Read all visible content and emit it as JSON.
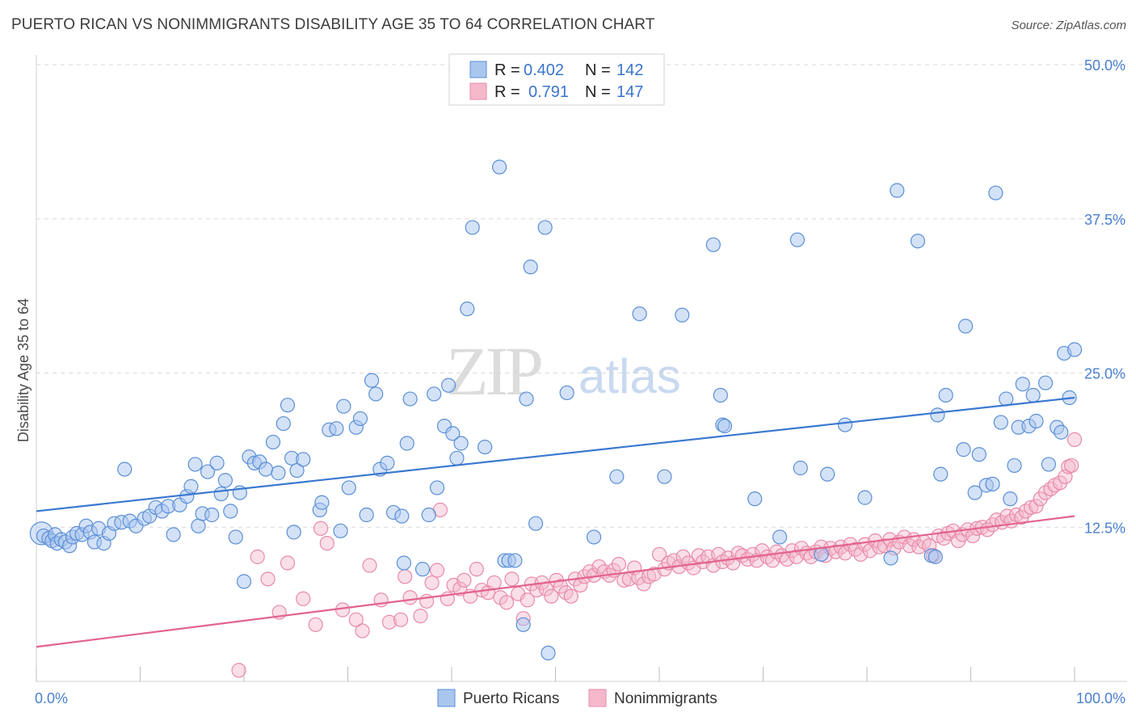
{
  "title": "PUERTO RICAN VS NONIMMIGRANTS DISABILITY AGE 35 TO 64 CORRELATION CHART",
  "source": "Source: ZipAtlas.com",
  "watermark": {
    "zip": "ZIP",
    "atlas": "atlas"
  },
  "legend": {
    "rows": [
      {
        "r_label": "R =",
        "r_value": "0.402",
        "n_label": "N =",
        "n_value": "142"
      },
      {
        "r_label": "R =",
        "r_value": "0.791",
        "n_label": "N =",
        "n_value": "147"
      }
    ]
  },
  "bottom_legend": [
    "Puerto Ricans",
    "Nonimmigrants"
  ],
  "colors": {
    "blue_fill": "#a9c6ef",
    "blue_stroke": "#5b8fd6",
    "blue_line": "#3a78d0",
    "pink_fill": "#f5b8cb",
    "pink_stroke": "#e88aa8",
    "pink_line": "#e2638e",
    "grid": "#d8d8d8",
    "tick_text": "#4a7fd0"
  },
  "chart_data": {
    "type": "scatter",
    "title": "PUERTO RICAN VS NONIMMIGRANTS DISABILITY AGE 35 TO 64 CORRELATION CHART",
    "ylabel": "Disability Age 35 to 64",
    "xlabel": "",
    "xlim": [
      0,
      100
    ],
    "ylim": [
      0,
      50
    ],
    "x_tick_labels": [
      "0.0%",
      "100.0%"
    ],
    "y_ticks": [
      12.5,
      25.0,
      37.5,
      50.0
    ],
    "y_tick_labels": [
      "12.5%",
      "25.0%",
      "37.5%",
      "50.0%"
    ],
    "grid": "horizontal dashed",
    "series": [
      {
        "name": "Puerto Ricans",
        "R": 0.402,
        "N": 142,
        "trend": {
          "x": [
            0,
            100
          ],
          "y": [
            13.8,
            23.0
          ]
        },
        "points": [
          [
            0.7,
            11.8
          ],
          [
            1.2,
            11.6
          ],
          [
            1.5,
            11.4
          ],
          [
            1.8,
            11.9
          ],
          [
            2.0,
            11.2
          ],
          [
            2.4,
            11.5
          ],
          [
            2.8,
            11.3
          ],
          [
            3.2,
            11.0
          ],
          [
            3.5,
            11.7
          ],
          [
            3.9,
            12.0
          ],
          [
            4.4,
            11.9
          ],
          [
            4.8,
            12.6
          ],
          [
            5.2,
            12.1
          ],
          [
            5.6,
            11.3
          ],
          [
            6.0,
            12.4
          ],
          [
            6.5,
            11.2
          ],
          [
            7.0,
            12.0
          ],
          [
            7.5,
            12.8
          ],
          [
            8.5,
            17.2
          ],
          [
            8.2,
            12.9
          ],
          [
            9.0,
            13.0
          ],
          [
            9.6,
            12.6
          ],
          [
            10.4,
            13.2
          ],
          [
            10.9,
            13.4
          ],
          [
            11.5,
            14.1
          ],
          [
            12.1,
            13.8
          ],
          [
            12.7,
            14.2
          ],
          [
            13.2,
            11.9
          ],
          [
            13.8,
            14.3
          ],
          [
            14.5,
            15.0
          ],
          [
            14.9,
            15.8
          ],
          [
            15.3,
            17.6
          ],
          [
            15.6,
            12.6
          ],
          [
            16.0,
            13.6
          ],
          [
            16.5,
            17.0
          ],
          [
            16.9,
            13.5
          ],
          [
            17.4,
            17.7
          ],
          [
            17.8,
            15.2
          ],
          [
            18.2,
            16.3
          ],
          [
            18.7,
            13.8
          ],
          [
            19.2,
            11.7
          ],
          [
            19.6,
            15.3
          ],
          [
            20.0,
            8.1
          ],
          [
            20.5,
            18.2
          ],
          [
            21.0,
            17.7
          ],
          [
            21.5,
            17.8
          ],
          [
            22.1,
            17.2
          ],
          [
            22.8,
            19.4
          ],
          [
            23.3,
            16.9
          ],
          [
            23.8,
            20.9
          ],
          [
            24.2,
            22.4
          ],
          [
            24.6,
            18.1
          ],
          [
            24.8,
            12.1
          ],
          [
            25.1,
            17.1
          ],
          [
            25.7,
            18.0
          ],
          [
            27.3,
            13.9
          ],
          [
            27.5,
            14.5
          ],
          [
            28.2,
            20.4
          ],
          [
            28.9,
            20.5
          ],
          [
            29.3,
            12.2
          ],
          [
            29.6,
            22.3
          ],
          [
            30.1,
            15.7
          ],
          [
            30.8,
            20.6
          ],
          [
            31.2,
            21.3
          ],
          [
            31.8,
            13.5
          ],
          [
            32.3,
            24.4
          ],
          [
            32.7,
            23.3
          ],
          [
            33.1,
            17.2
          ],
          [
            33.8,
            17.7
          ],
          [
            34.4,
            13.7
          ],
          [
            35.2,
            13.4
          ],
          [
            35.4,
            9.6
          ],
          [
            35.7,
            19.3
          ],
          [
            36.0,
            22.9
          ],
          [
            37.2,
            9.1
          ],
          [
            37.8,
            13.5
          ],
          [
            38.3,
            23.3
          ],
          [
            38.6,
            15.7
          ],
          [
            39.3,
            20.7
          ],
          [
            39.7,
            24.0
          ],
          [
            40.1,
            20.1
          ],
          [
            40.5,
            18.1
          ],
          [
            40.9,
            19.3
          ],
          [
            41.5,
            30.2
          ],
          [
            42.0,
            36.8
          ],
          [
            43.2,
            19.0
          ],
          [
            44.6,
            41.7
          ],
          [
            45.1,
            9.8
          ],
          [
            45.5,
            9.8
          ],
          [
            46.1,
            9.8
          ],
          [
            46.9,
            4.6
          ],
          [
            47.2,
            22.9
          ],
          [
            47.6,
            33.6
          ],
          [
            48.1,
            12.8
          ],
          [
            49.0,
            36.8
          ],
          [
            49.3,
            2.3
          ],
          [
            51.1,
            23.4
          ],
          [
            53.7,
            11.7
          ],
          [
            55.9,
            16.6
          ],
          [
            58.1,
            29.8
          ],
          [
            60.5,
            16.6
          ],
          [
            62.2,
            29.7
          ],
          [
            65.2,
            35.4
          ],
          [
            65.9,
            23.2
          ],
          [
            66.1,
            20.8
          ],
          [
            66.3,
            20.7
          ],
          [
            69.2,
            14.8
          ],
          [
            71.6,
            11.7
          ],
          [
            73.3,
            35.8
          ],
          [
            73.6,
            17.3
          ],
          [
            75.6,
            10.3
          ],
          [
            76.2,
            16.8
          ],
          [
            77.9,
            20.8
          ],
          [
            79.8,
            14.9
          ],
          [
            82.3,
            10.0
          ],
          [
            82.9,
            39.8
          ],
          [
            84.9,
            35.7
          ],
          [
            86.2,
            10.2
          ],
          [
            86.6,
            10.1
          ],
          [
            86.8,
            21.6
          ],
          [
            87.1,
            16.8
          ],
          [
            87.6,
            23.2
          ],
          [
            89.3,
            18.8
          ],
          [
            89.5,
            28.8
          ],
          [
            90.4,
            15.3
          ],
          [
            90.8,
            18.4
          ],
          [
            91.5,
            15.9
          ],
          [
            92.1,
            16.0
          ],
          [
            92.4,
            39.6
          ],
          [
            92.9,
            21.0
          ],
          [
            93.4,
            22.9
          ],
          [
            93.8,
            14.8
          ],
          [
            94.2,
            17.5
          ],
          [
            94.6,
            20.6
          ],
          [
            95.0,
            24.1
          ],
          [
            95.6,
            20.7
          ],
          [
            96.0,
            23.2
          ],
          [
            96.3,
            21.1
          ],
          [
            97.2,
            24.2
          ],
          [
            97.5,
            17.6
          ],
          [
            98.3,
            20.6
          ],
          [
            98.7,
            20.2
          ],
          [
            99.0,
            26.6
          ],
          [
            99.5,
            23.0
          ],
          [
            100.0,
            26.9
          ]
        ]
      },
      {
        "name": "Nonimmigrants",
        "R": 0.791,
        "N": 147,
        "trend": {
          "x": [
            0,
            100
          ],
          "y": [
            2.8,
            13.4
          ]
        },
        "points": [
          [
            19.5,
            0.9
          ],
          [
            21.3,
            10.1
          ],
          [
            22.3,
            8.3
          ],
          [
            23.4,
            5.6
          ],
          [
            24.2,
            9.6
          ],
          [
            25.7,
            6.7
          ],
          [
            26.9,
            4.6
          ],
          [
            27.4,
            12.4
          ],
          [
            28.0,
            11.2
          ],
          [
            29.5,
            5.8
          ],
          [
            30.8,
            5.0
          ],
          [
            31.4,
            4.1
          ],
          [
            32.1,
            9.4
          ],
          [
            33.2,
            6.6
          ],
          [
            34.0,
            4.8
          ],
          [
            35.1,
            5.0
          ],
          [
            35.5,
            8.5
          ],
          [
            36.0,
            6.8
          ],
          [
            37.0,
            5.3
          ],
          [
            37.6,
            6.5
          ],
          [
            38.1,
            8.0
          ],
          [
            38.6,
            9.0
          ],
          [
            38.9,
            13.9
          ],
          [
            39.6,
            6.7
          ],
          [
            40.2,
            7.8
          ],
          [
            40.8,
            7.5
          ],
          [
            41.2,
            8.2
          ],
          [
            41.8,
            6.9
          ],
          [
            42.4,
            9.1
          ],
          [
            42.9,
            7.4
          ],
          [
            43.5,
            7.2
          ],
          [
            44.1,
            8.0
          ],
          [
            44.7,
            6.8
          ],
          [
            45.3,
            6.4
          ],
          [
            45.8,
            8.3
          ],
          [
            46.4,
            7.1
          ],
          [
            46.9,
            5.1
          ],
          [
            47.3,
            6.6
          ],
          [
            47.7,
            7.9
          ],
          [
            48.2,
            7.4
          ],
          [
            48.7,
            8.0
          ],
          [
            49.1,
            7.5
          ],
          [
            49.6,
            6.9
          ],
          [
            50.1,
            8.2
          ],
          [
            50.5,
            7.7
          ],
          [
            51.0,
            7.2
          ],
          [
            51.5,
            6.9
          ],
          [
            51.9,
            8.3
          ],
          [
            52.4,
            7.8
          ],
          [
            52.8,
            8.5
          ],
          [
            53.3,
            8.9
          ],
          [
            53.7,
            8.6
          ],
          [
            54.2,
            9.3
          ],
          [
            54.7,
            8.9
          ],
          [
            55.2,
            8.6
          ],
          [
            55.6,
            9.0
          ],
          [
            56.1,
            9.5
          ],
          [
            56.6,
            8.2
          ],
          [
            57.1,
            8.3
          ],
          [
            57.6,
            9.2
          ],
          [
            58.0,
            8.4
          ],
          [
            58.5,
            7.9
          ],
          [
            59.0,
            8.5
          ],
          [
            59.5,
            8.7
          ],
          [
            60.0,
            10.3
          ],
          [
            60.5,
            9.1
          ],
          [
            60.9,
            9.6
          ],
          [
            61.4,
            9.8
          ],
          [
            61.9,
            9.3
          ],
          [
            62.3,
            10.1
          ],
          [
            62.8,
            9.6
          ],
          [
            63.3,
            9.2
          ],
          [
            63.8,
            10.2
          ],
          [
            64.2,
            9.7
          ],
          [
            64.7,
            10.1
          ],
          [
            65.2,
            9.4
          ],
          [
            65.7,
            10.3
          ],
          [
            66.1,
            9.7
          ],
          [
            66.6,
            10.0
          ],
          [
            67.1,
            9.6
          ],
          [
            67.6,
            10.4
          ],
          [
            68.0,
            10.2
          ],
          [
            68.5,
            9.9
          ],
          [
            69.0,
            10.3
          ],
          [
            69.4,
            9.8
          ],
          [
            69.9,
            10.6
          ],
          [
            70.4,
            10.1
          ],
          [
            70.9,
            9.8
          ],
          [
            71.3,
            10.5
          ],
          [
            71.8,
            10.2
          ],
          [
            72.3,
            9.9
          ],
          [
            72.8,
            10.6
          ],
          [
            73.2,
            10.1
          ],
          [
            73.7,
            10.8
          ],
          [
            74.2,
            10.4
          ],
          [
            74.6,
            10.1
          ],
          [
            75.1,
            10.5
          ],
          [
            75.6,
            10.9
          ],
          [
            76.0,
            10.2
          ],
          [
            76.5,
            10.8
          ],
          [
            77.0,
            10.5
          ],
          [
            77.5,
            10.9
          ],
          [
            77.9,
            10.4
          ],
          [
            78.4,
            11.1
          ],
          [
            78.9,
            10.7
          ],
          [
            79.4,
            10.3
          ],
          [
            79.8,
            11.1
          ],
          [
            80.3,
            10.6
          ],
          [
            80.8,
            11.4
          ],
          [
            81.2,
            10.9
          ],
          [
            81.7,
            11.0
          ],
          [
            82.2,
            11.5
          ],
          [
            82.6,
            10.8
          ],
          [
            83.1,
            11.3
          ],
          [
            83.6,
            11.7
          ],
          [
            84.1,
            11.0
          ],
          [
            84.5,
            11.5
          ],
          [
            85.0,
            10.9
          ],
          [
            85.5,
            11.3
          ],
          [
            86.0,
            11.0
          ],
          [
            86.4,
            10.2
          ],
          [
            86.9,
            11.8
          ],
          [
            87.4,
            11.6
          ],
          [
            87.8,
            12.0
          ],
          [
            88.3,
            12.2
          ],
          [
            88.8,
            11.4
          ],
          [
            89.2,
            11.9
          ],
          [
            89.7,
            12.3
          ],
          [
            90.2,
            11.8
          ],
          [
            90.6,
            12.4
          ],
          [
            91.1,
            12.5
          ],
          [
            91.6,
            12.3
          ],
          [
            92.1,
            12.7
          ],
          [
            92.5,
            13.1
          ],
          [
            93.0,
            12.9
          ],
          [
            93.5,
            13.4
          ],
          [
            93.9,
            13.0
          ],
          [
            94.4,
            13.5
          ],
          [
            94.9,
            13.3
          ],
          [
            95.3,
            13.8
          ],
          [
            95.8,
            14.1
          ],
          [
            96.3,
            14.2
          ],
          [
            96.7,
            14.8
          ],
          [
            97.2,
            15.3
          ],
          [
            97.7,
            15.6
          ],
          [
            98.1,
            15.9
          ],
          [
            98.6,
            16.1
          ],
          [
            99.1,
            16.6
          ],
          [
            99.4,
            17.4
          ],
          [
            99.7,
            17.5
          ],
          [
            100.0,
            19.6
          ]
        ]
      }
    ]
  }
}
